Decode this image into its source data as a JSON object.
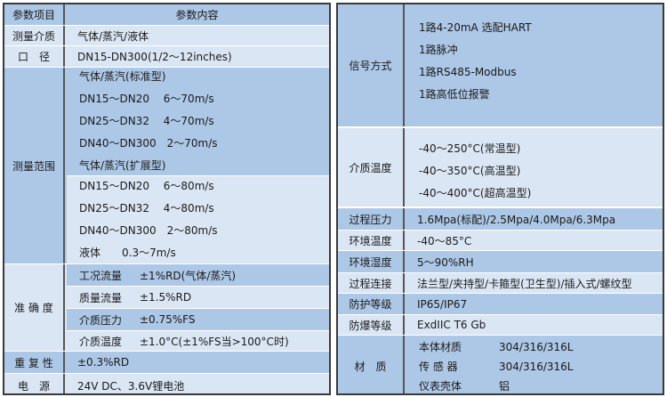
{
  "left": {
    "header": {
      "item": "参数项目",
      "content": "参数内容"
    },
    "medium": {
      "label": "测量介质",
      "value": "气体/蒸汽/液体"
    },
    "diameter": {
      "label": "口　径",
      "value": "DN15-DN300(1/2～12inches)"
    },
    "range": {
      "label": "测量范围",
      "standard": [
        "气体/蒸汽(标准型)",
        "DN15～DN20　 6～70m/s",
        "DN25～DN32　 4～70m/s",
        "DN40～DN300　2～70m/s",
        "气体/蒸汽(扩展型)"
      ],
      "extended": [
        "DN15～DN20　 6～80m/s",
        "DN25～DN32　 4～80m/s",
        "DN40～DN300　2～80m/s",
        "液体　　0.3～7m/s"
      ]
    },
    "accuracy": {
      "label": "准 确 度",
      "items": [
        {
          "k": "工况流量",
          "v": "±1%RD(气体/蒸汽)"
        },
        {
          "k": "质量流量",
          "v": "±1.5%RD"
        },
        {
          "k": "介质压力",
          "v": "±0.75%FS"
        },
        {
          "k": "介质温度",
          "v": "±1.0°C(±1%FS当>100°C时)"
        }
      ]
    },
    "repeat": {
      "label": "重 复 性",
      "value": "±0.3%RD"
    },
    "power": {
      "label": "电　源",
      "value": "24V DC、3.6V锂电池"
    }
  },
  "right": {
    "signal": {
      "label": "信号方式",
      "lines": [
        "1路4-20mA 选配HART",
        "1路脉冲",
        "1路RS485-Modbus",
        "1路高低位报警"
      ]
    },
    "mtemp": {
      "label": "介质温度",
      "lines": [
        "-40～250°C(常温型)",
        "-40～350°C(高温型)",
        "-40～400°C(超高温型)"
      ]
    },
    "rows": [
      {
        "label": "过程压力",
        "value": "1.6Mpa(标配)/2.5Mpa/4.0Mpa/6.3Mpa"
      },
      {
        "label": "环境温度",
        "value": "-40～85°C"
      },
      {
        "label": "环境湿度",
        "value": "5～90%RH"
      },
      {
        "label": "过程连接",
        "value": "法兰型/夹持型/卡箍型(卫生型)/插入式/螺纹型"
      },
      {
        "label": "防护等级",
        "value": "IP65/IP67"
      },
      {
        "label": "防爆等级",
        "value": "ExdIIC T6 Gb"
      }
    ],
    "material": {
      "label": "材　质",
      "items": [
        {
          "k": "本体材质",
          "v": "304/316/316L"
        },
        {
          "k": "传 感 器",
          "v": "304/316/316L"
        },
        {
          "k": "仪表壳体",
          "v": "铝"
        }
      ]
    }
  },
  "colors": {
    "dark_row": "#adc7e6",
    "light_row": "#dbe6f4",
    "border": "#3a3a3a"
  }
}
